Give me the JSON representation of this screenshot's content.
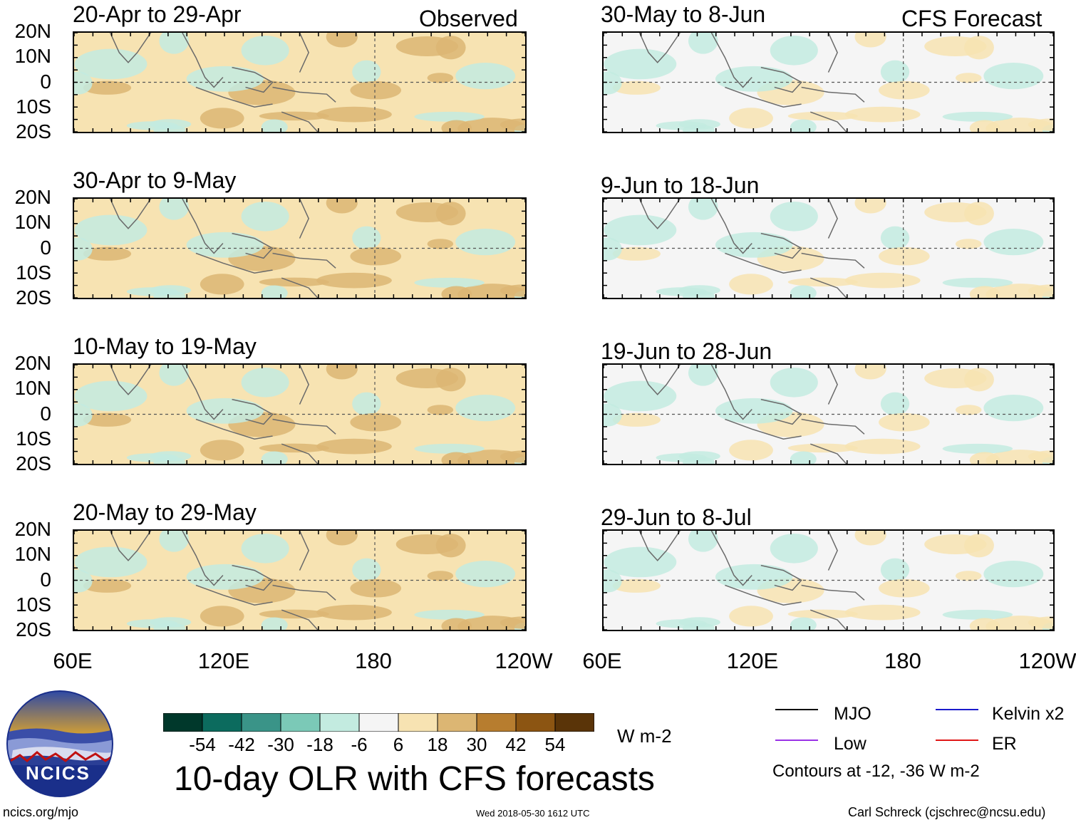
{
  "header": {
    "observed_label": "Observed",
    "forecast_label": "CFS Forecast"
  },
  "observed_panels": [
    {
      "title": "20-Apr to 29-Apr"
    },
    {
      "title": "30-Apr to 9-May"
    },
    {
      "title": "10-May to 19-May"
    },
    {
      "title": "20-May to 29-May"
    }
  ],
  "forecast_panels": [
    {
      "title": "30-May to 8-Jun"
    },
    {
      "title": "9-Jun to 18-Jun"
    },
    {
      "title": "19-Jun to 28-Jun"
    },
    {
      "title": "29-Jun to 8-Jul"
    }
  ],
  "axes": {
    "lat_ticks": [
      "20N",
      "10N",
      "0",
      "10S",
      "20S"
    ],
    "lon_ticks": [
      "60E",
      "120E",
      "180",
      "120W"
    ]
  },
  "colorbar": {
    "labels": [
      "-54",
      "-42",
      "-30",
      "-18",
      "-6",
      "6",
      "18",
      "30",
      "42",
      "54"
    ],
    "colors": [
      "#00382b",
      "#0c6b5e",
      "#3a9488",
      "#7bc9b7",
      "#c3ebe0",
      "#f5f5f5",
      "#f7e3b2",
      "#dcb673",
      "#b77d2f",
      "#8c5512",
      "#5a3408"
    ],
    "units": "W m-2"
  },
  "legend": {
    "items": [
      {
        "label": "MJO",
        "color": "#000000"
      },
      {
        "label": "Kelvin x2",
        "color": "#1a1acc"
      },
      {
        "label": "Low",
        "color": "#9a32e6"
      },
      {
        "label": "ER",
        "color": "#e01818"
      }
    ],
    "contours_note": "Contours at -12, -36 W m-2"
  },
  "logo": {
    "text": "NCICS"
  },
  "main_title": "10-day OLR with CFS forecasts",
  "footer": {
    "left": "ncics.org/mjo",
    "center": "Wed 2018-05-30 1612 UTC",
    "right": "Carl Schreck (cjschrec@ncsu.edu)"
  },
  "chart_data": {
    "type": "heatmap",
    "title": "10-day OLR with CFS forecasts",
    "variable": "OLR anomaly",
    "units": "W m-2",
    "x_range": [
      "60E",
      "120W"
    ],
    "y_range": [
      "20S",
      "20N"
    ],
    "color_levels": [
      -54,
      -42,
      -30,
      -18,
      -6,
      6,
      18,
      30,
      42,
      54
    ],
    "contour_levels": [
      -12,
      -36
    ],
    "panels_observed": [
      "20-Apr to 29-Apr",
      "30-Apr to 9-May",
      "10-May to 19-May",
      "20-May to 29-May"
    ],
    "panels_forecast": [
      "30-May to 8-Jun",
      "9-Jun to 18-Jun",
      "19-Jun to 28-Jun",
      "29-Jun to 8-Jul"
    ],
    "contour_series": [
      "MJO",
      "Kelvin x2",
      "Low",
      "ER"
    ]
  }
}
